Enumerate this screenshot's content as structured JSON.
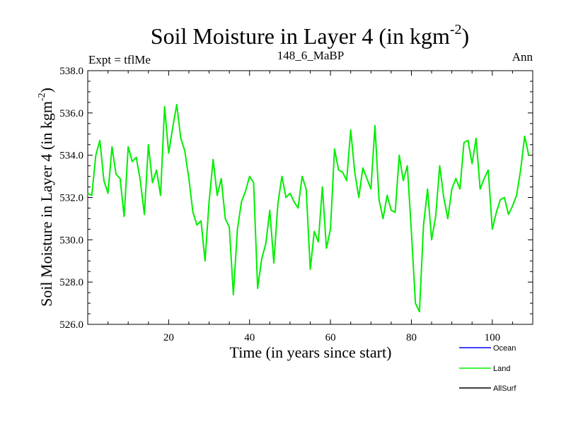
{
  "chart_data": {
    "type": "line",
    "title": "Soil Moisture in Layer 4 (in kgm",
    "title_sup": "-2",
    "title_close": ")",
    "subtitle_left": "Expt = tflMe",
    "subtitle_center": "148_6_MaBP",
    "subtitle_right": "Ann",
    "xlabel": "Time (in years since start)",
    "ylabel": "Soil Moisture in Layer 4 (in kgm",
    "ylabel_sup": "-2",
    "ylabel_close": ")",
    "xlim": [
      0,
      110
    ],
    "ylim": [
      526.0,
      538.0
    ],
    "x_ticks": [
      20,
      40,
      60,
      80,
      100
    ],
    "x_tick_labels": [
      "20",
      "40",
      "60",
      "80",
      "100"
    ],
    "y_ticks": [
      526,
      528,
      530,
      532,
      534,
      536,
      538
    ],
    "y_tick_labels": [
      "526.0",
      "528.0",
      "530.0",
      "532.0",
      "534.0",
      "536.0",
      "538.0"
    ],
    "legend": [
      {
        "name": "Ocean",
        "color": "#0000ff"
      },
      {
        "name": "Land",
        "color": "#00ee00"
      },
      {
        "name": "AllSurf",
        "color": "#000000"
      }
    ],
    "series": [
      {
        "name": "Land",
        "color": "#00ee00",
        "x": [
          0,
          1,
          2,
          3,
          4,
          5,
          6,
          7,
          8,
          9,
          10,
          11,
          12,
          13,
          14,
          15,
          16,
          17,
          18,
          19,
          20,
          21,
          22,
          23,
          24,
          25,
          26,
          27,
          28,
          29,
          30,
          31,
          32,
          33,
          34,
          35,
          36,
          37,
          38,
          39,
          40,
          41,
          42,
          43,
          44,
          45,
          46,
          47,
          48,
          49,
          50,
          51,
          52,
          53,
          54,
          55,
          56,
          57,
          58,
          59,
          60,
          61,
          62,
          63,
          64,
          65,
          66,
          67,
          68,
          69,
          70,
          71,
          72,
          73,
          74,
          75,
          76,
          77,
          78,
          79,
          80,
          81,
          82,
          83,
          84,
          85,
          86,
          87,
          88,
          89,
          90,
          91,
          92,
          93,
          94,
          95,
          96,
          97,
          98,
          99,
          100,
          101,
          102,
          103,
          104,
          105,
          106,
          107,
          108,
          109
        ],
        "values": [
          532.2,
          532.1,
          534.0,
          534.7,
          532.8,
          532.2,
          534.4,
          533.1,
          532.9,
          531.1,
          534.4,
          533.7,
          533.9,
          532.8,
          531.2,
          534.5,
          532.7,
          533.3,
          532.1,
          536.3,
          534.1,
          535.3,
          536.4,
          534.8,
          534.2,
          532.9,
          531.3,
          530.7,
          530.9,
          529.0,
          531.8,
          533.8,
          532.1,
          532.9,
          531.0,
          530.6,
          527.4,
          530.5,
          531.8,
          532.3,
          533.0,
          532.7,
          527.7,
          529.1,
          529.8,
          531.4,
          528.9,
          531.7,
          533.0,
          532.0,
          532.2,
          531.8,
          531.5,
          533.0,
          532.4,
          528.6,
          530.4,
          529.9,
          532.5,
          529.6,
          530.5,
          534.3,
          533.3,
          533.2,
          532.8,
          535.2,
          533.2,
          532.0,
          533.4,
          532.9,
          532.4,
          535.4,
          531.9,
          531.0,
          532.1,
          531.4,
          531.3,
          534.0,
          532.8,
          533.5,
          530.4,
          527.0,
          526.6,
          530.7,
          532.4,
          530.0,
          531.1,
          533.5,
          532.0,
          531.0,
          532.4,
          532.9,
          532.4,
          534.6,
          534.7,
          533.6,
          534.8,
          532.4,
          532.9,
          533.3,
          530.5,
          531.3,
          531.9,
          532.0,
          531.2,
          531.6,
          532.1,
          533.3,
          534.9,
          534.0
        ]
      }
    ]
  }
}
